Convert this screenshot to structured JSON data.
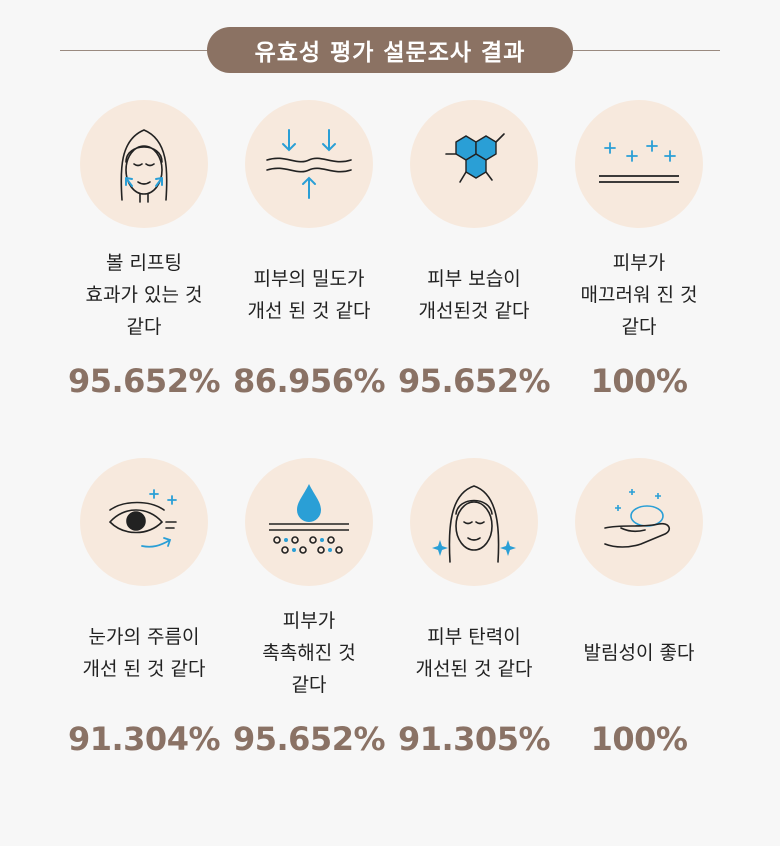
{
  "title": "유효성 평가 설문조사 결과",
  "items": [
    {
      "icon": "face-lifting-icon",
      "label": "볼 리프팅\n효과가 있는 것\n같다",
      "value": "95.652%"
    },
    {
      "icon": "skin-density-icon",
      "label": "피부의 밀도가\n개선 된 것 같다",
      "value": "86.956%"
    },
    {
      "icon": "molecule-moisture-icon",
      "label": "피부 보습이\n개선된것 같다",
      "value": "95.652%"
    },
    {
      "icon": "smooth-sparkle-icon",
      "label": "피부가\n매끄러워 진 것\n같다",
      "value": "100%"
    },
    {
      "icon": "eye-wrinkle-icon",
      "label": "눈가의 주름이\n개선 된 것 같다",
      "value": "91.304%"
    },
    {
      "icon": "water-drop-skin-icon",
      "label": "피부가\n촉촉해진 것\n같다",
      "value": "95.652%"
    },
    {
      "icon": "face-elasticity-icon",
      "label": "피부 탄력이\n개선된 것 같다",
      "value": "91.305%"
    },
    {
      "icon": "hand-spread-icon",
      "label": "발림성이 좋다",
      "value": "100%"
    }
  ]
}
